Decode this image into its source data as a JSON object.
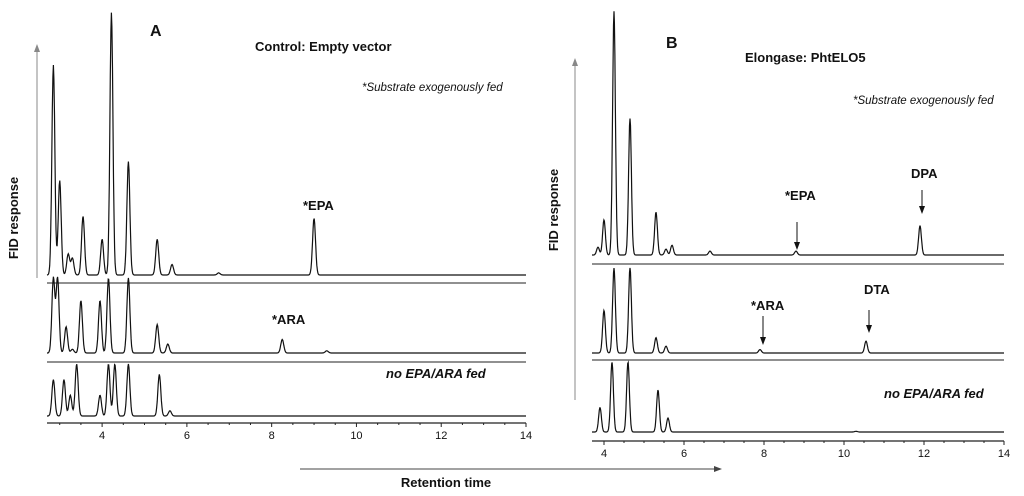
{
  "common": {
    "xlabel": "Retention time",
    "ylabel": "FID response"
  },
  "chart_data": [
    {
      "type": "line",
      "panel": "A",
      "title": "Control: Empty vector",
      "note": "*Substrate exogenously fed",
      "xlabel": "Retention time",
      "ylabel": "FID response",
      "xlim": [
        2.7,
        14
      ],
      "x_ticks": [
        "4",
        "6",
        "8",
        "10",
        "12",
        "14"
      ],
      "grid": false,
      "series": [
        {
          "name": "",
          "label": "*EPA",
          "peaks": [
            [
              2.85,
              1.0
            ],
            [
              3.0,
              0.45
            ],
            [
              3.2,
              0.1
            ],
            [
              3.3,
              0.08
            ],
            [
              3.55,
              0.28
            ],
            [
              4.0,
              0.17
            ],
            [
              4.22,
              1.25
            ],
            [
              4.62,
              0.54
            ],
            [
              5.3,
              0.17
            ],
            [
              5.65,
              0.05
            ],
            [
              6.75,
              0.01
            ],
            [
              9.0,
              0.27
            ]
          ]
        },
        {
          "name": "",
          "label": "*ARA",
          "peaks": [
            [
              2.85,
              1.0
            ],
            [
              2.95,
              1.0
            ],
            [
              3.15,
              0.35
            ],
            [
              3.3,
              0.05
            ],
            [
              3.5,
              0.7
            ],
            [
              3.95,
              0.7
            ],
            [
              4.15,
              1.0
            ],
            [
              4.62,
              1.0
            ],
            [
              5.3,
              0.38
            ],
            [
              5.55,
              0.12
            ],
            [
              8.25,
              0.18
            ],
            [
              9.3,
              0.03
            ]
          ]
        },
        {
          "name": "",
          "label": "no EPA/ARA fed",
          "peaks": [
            [
              2.85,
              0.7
            ],
            [
              3.1,
              0.7
            ],
            [
              3.25,
              0.4
            ],
            [
              3.4,
              1.0
            ],
            [
              3.95,
              0.4
            ],
            [
              4.15,
              1.0
            ],
            [
              4.3,
              1.0
            ],
            [
              4.62,
              1.0
            ],
            [
              5.35,
              0.8
            ],
            [
              5.6,
              0.1
            ]
          ]
        }
      ]
    },
    {
      "type": "line",
      "panel": "B",
      "title": "Elongase: PhtELO5",
      "note": "*Substrate exogenously fed",
      "xlabel": "Retention time",
      "ylabel": "FID response",
      "xlim": [
        3.7,
        14
      ],
      "x_ticks": [
        "4",
        "6",
        "8",
        "10",
        "12",
        "14"
      ],
      "grid": false,
      "series": [
        {
          "name": "",
          "labels": [
            "*EPA",
            "DPA"
          ],
          "peaks": [
            [
              3.85,
              0.04
            ],
            [
              4.0,
              0.18
            ],
            [
              4.25,
              1.25
            ],
            [
              4.65,
              0.7
            ],
            [
              5.3,
              0.22
            ],
            [
              5.55,
              0.03
            ],
            [
              5.7,
              0.05
            ],
            [
              6.65,
              0.02
            ],
            [
              8.8,
              0.02
            ],
            [
              11.9,
              0.15
            ]
          ]
        },
        {
          "name": "",
          "labels": [
            "*ARA",
            "DTA"
          ],
          "peaks": [
            [
              4.0,
              0.5
            ],
            [
              4.25,
              1.0
            ],
            [
              4.65,
              1.0
            ],
            [
              5.3,
              0.18
            ],
            [
              5.55,
              0.08
            ],
            [
              7.9,
              0.04
            ],
            [
              10.55,
              0.14
            ]
          ]
        },
        {
          "name": "",
          "label": "no EPA/ARA fed",
          "peaks": [
            [
              3.9,
              0.35
            ],
            [
              4.2,
              1.0
            ],
            [
              4.6,
              1.0
            ],
            [
              5.35,
              0.6
            ],
            [
              5.6,
              0.2
            ],
            [
              10.3,
              0.01
            ]
          ]
        }
      ]
    }
  ]
}
